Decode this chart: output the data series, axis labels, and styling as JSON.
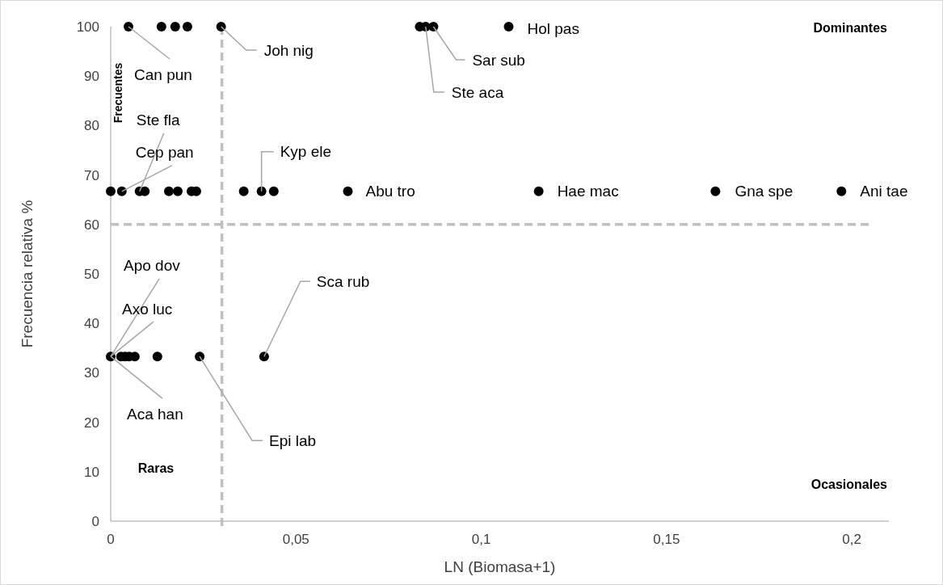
{
  "chart_data": {
    "type": "scatter",
    "xlabel": "LN (Biomasa+1)",
    "ylabel": "Frecuencia relativa %",
    "series": [
      {
        "color": "#000000",
        "x": [
          0.0048,
          0.0137,
          0.0174,
          0.0207,
          0.0298,
          0.0834,
          0.085,
          0.0871,
          0.1074,
          0,
          0.003,
          0.0078,
          0.0092,
          0.0157,
          0.0181,
          0.0218,
          0.0231,
          0.0359,
          0.0407,
          0.044,
          0.064,
          0.1155,
          0.1632,
          0.1972,
          0,
          0.0028,
          0.0039,
          0.005,
          0.0065,
          0.0126,
          0.024,
          0.0414
        ],
        "values": [
          100,
          100,
          100,
          100,
          100,
          100,
          100,
          100,
          100,
          66.7,
          66.7,
          66.7,
          66.7,
          66.7,
          66.7,
          66.7,
          66.7,
          66.7,
          66.7,
          66.7,
          66.7,
          66.7,
          66.7,
          66.7,
          33.3,
          33.3,
          33.3,
          33.3,
          33.3,
          33.3,
          33.3,
          33.3
        ]
      }
    ],
    "xlim": [
      0,
      0.21
    ],
    "xticks": [
      0,
      {
        "value": 0.05,
        "label": "0,05"
      },
      {
        "value": 0.1,
        "label": "0,1"
      },
      {
        "value": 0.15,
        "label": "0,15"
      },
      {
        "value": 0.2,
        "label": "0,2"
      }
    ],
    "ylim": [
      0,
      100
    ],
    "yticks": [
      0,
      10,
      20,
      30,
      40,
      50,
      60,
      70,
      80,
      90,
      100
    ],
    "grid": false,
    "marker": "circle",
    "ref_lines": [
      {
        "axis": "x",
        "value": 0.03,
        "color": "#bfbfbf",
        "line_style": "dashed"
      },
      {
        "axis": "y",
        "value": 60,
        "color": "#bfbfbf",
        "line_style": "dashed"
      }
    ],
    "annotations": [
      {
        "text": "Can pun",
        "x": 0.0048,
        "y": 100
      },
      {
        "text": "Joh nig",
        "x": 0.0298,
        "y": 100
      },
      {
        "text": "Sar sub",
        "x": 0.0871,
        "y": 100
      },
      {
        "text": "Ste aca",
        "x": 0.085,
        "y": 100
      },
      {
        "text": "Hol pas",
        "x": 0.1074,
        "y": 100
      },
      {
        "text": "Ste fla",
        "x": 0.0078,
        "y": 66.7
      },
      {
        "text": "Cep pan",
        "x": 0.003,
        "y": 66.7
      },
      {
        "text": "Kyp ele",
        "x": 0.0407,
        "y": 66.7
      },
      {
        "text": "Abu tro",
        "x": 0.064,
        "y": 66.7
      },
      {
        "text": "Hae mac",
        "x": 0.1155,
        "y": 66.7
      },
      {
        "text": "Gna spe",
        "x": 0.1632,
        "y": 66.7
      },
      {
        "text": "Ani tae",
        "x": 0.1972,
        "y": 66.7
      },
      {
        "text": "Apo dov",
        "x": 0,
        "y": 33.3
      },
      {
        "text": "Axo luc",
        "x": 0,
        "y": 33.3
      },
      {
        "text": "Aca han",
        "x": 0,
        "y": 33.3
      },
      {
        "text": "Epi lab",
        "x": 0.024,
        "y": 33.3
      },
      {
        "text": "Sca rub",
        "x": 0.0414,
        "y": 33.3
      },
      "Dominantes",
      "Frecuentes",
      "Raras",
      "Ocasionales"
    ]
  }
}
